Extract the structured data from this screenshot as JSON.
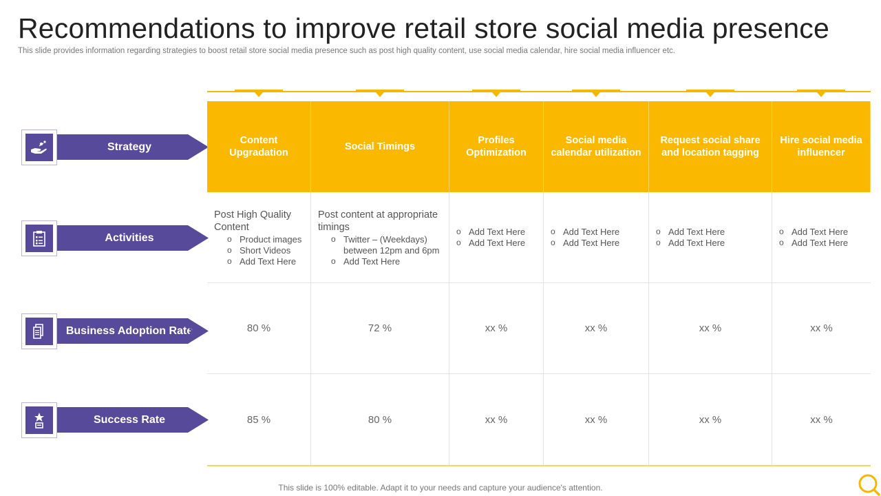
{
  "title": "Recommendations to improve retail store social media presence",
  "subtitle": "This slide provides information regarding strategies to boost retail store social media presence such as post high quality content, use social media calendar, hire social media influencer etc.",
  "row_labels": [
    {
      "label": "Strategy",
      "icon": "hand-money-icon"
    },
    {
      "label": "Activities",
      "icon": "clipboard-checklist-icon"
    },
    {
      "label": "Business Adoption Rate",
      "icon": "document-icon"
    },
    {
      "label": "Success Rate",
      "icon": "trophy-star-icon"
    }
  ],
  "columns": [
    {
      "strategy": "Content Upgradation",
      "activity_lead": "Post High Quality Content",
      "activities": [
        "Product images",
        "Short Videos",
        "Add Text Here"
      ],
      "adoption": "80 %",
      "success": "85 %"
    },
    {
      "strategy": "Social Timings",
      "activity_lead": "Post content at appropriate timings",
      "activities": [
        "Twitter – (Weekdays) between 12pm and 6pm",
        "Add Text Here"
      ],
      "adoption": "72 %",
      "success": "80 %"
    },
    {
      "strategy": "Profiles Optimization",
      "activity_lead": "",
      "activities": [
        "Add Text Here",
        "Add Text Here"
      ],
      "adoption": "xx %",
      "success": "xx %"
    },
    {
      "strategy": "Social media calendar utilization",
      "activity_lead": "",
      "activities": [
        "Add Text Here",
        "Add Text Here"
      ],
      "adoption": "xx %",
      "success": "xx %"
    },
    {
      "strategy": "Request social share and location tagging",
      "activity_lead": "",
      "activities": [
        "Add Text Here",
        "Add Text Here"
      ],
      "adoption": "xx %",
      "success": "xx %"
    },
    {
      "strategy": "Hire social media influencer",
      "activity_lead": "",
      "activities": [
        "Add Text Here",
        "Add Text Here"
      ],
      "adoption": "xx %",
      "success": "xx %"
    }
  ],
  "footer": "This slide is 100% editable. Adapt it to your needs and capture your audience's attention.",
  "colors": {
    "accent_yellow": "#fbb800",
    "accent_purple": "#574a9a"
  },
  "corner_icon": "magnifier-icon"
}
